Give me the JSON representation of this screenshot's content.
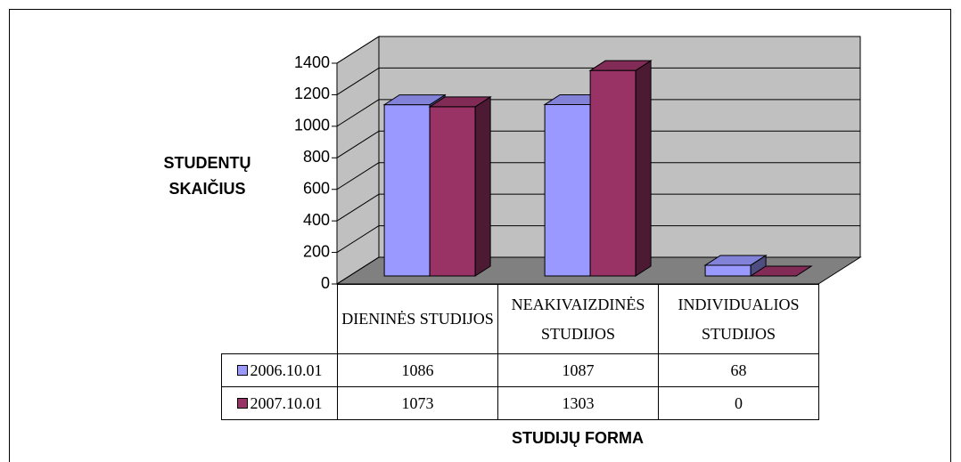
{
  "chart_data": {
    "type": "bar",
    "y_label": "STUDENTŲ SKAIČIUS",
    "x_label": "STUDIJŲ FORMA",
    "categories": [
      "DIENINĖS STUDIJOS",
      "NEAKIVAIZDINĖS STUDIJOS",
      "INDIVIDUALIOS STUDIJOS"
    ],
    "series": [
      {
        "name": "2006.10.01",
        "color": "#9999ff",
        "values": [
          1086,
          1087,
          68
        ]
      },
      {
        "name": "2007.10.01",
        "color": "#993366",
        "values": [
          1073,
          1303,
          0
        ]
      }
    ],
    "ylim": [
      0,
      1400
    ],
    "yticks": [
      0,
      200,
      400,
      600,
      800,
      1000,
      1200,
      1400
    ],
    "grid": true
  }
}
